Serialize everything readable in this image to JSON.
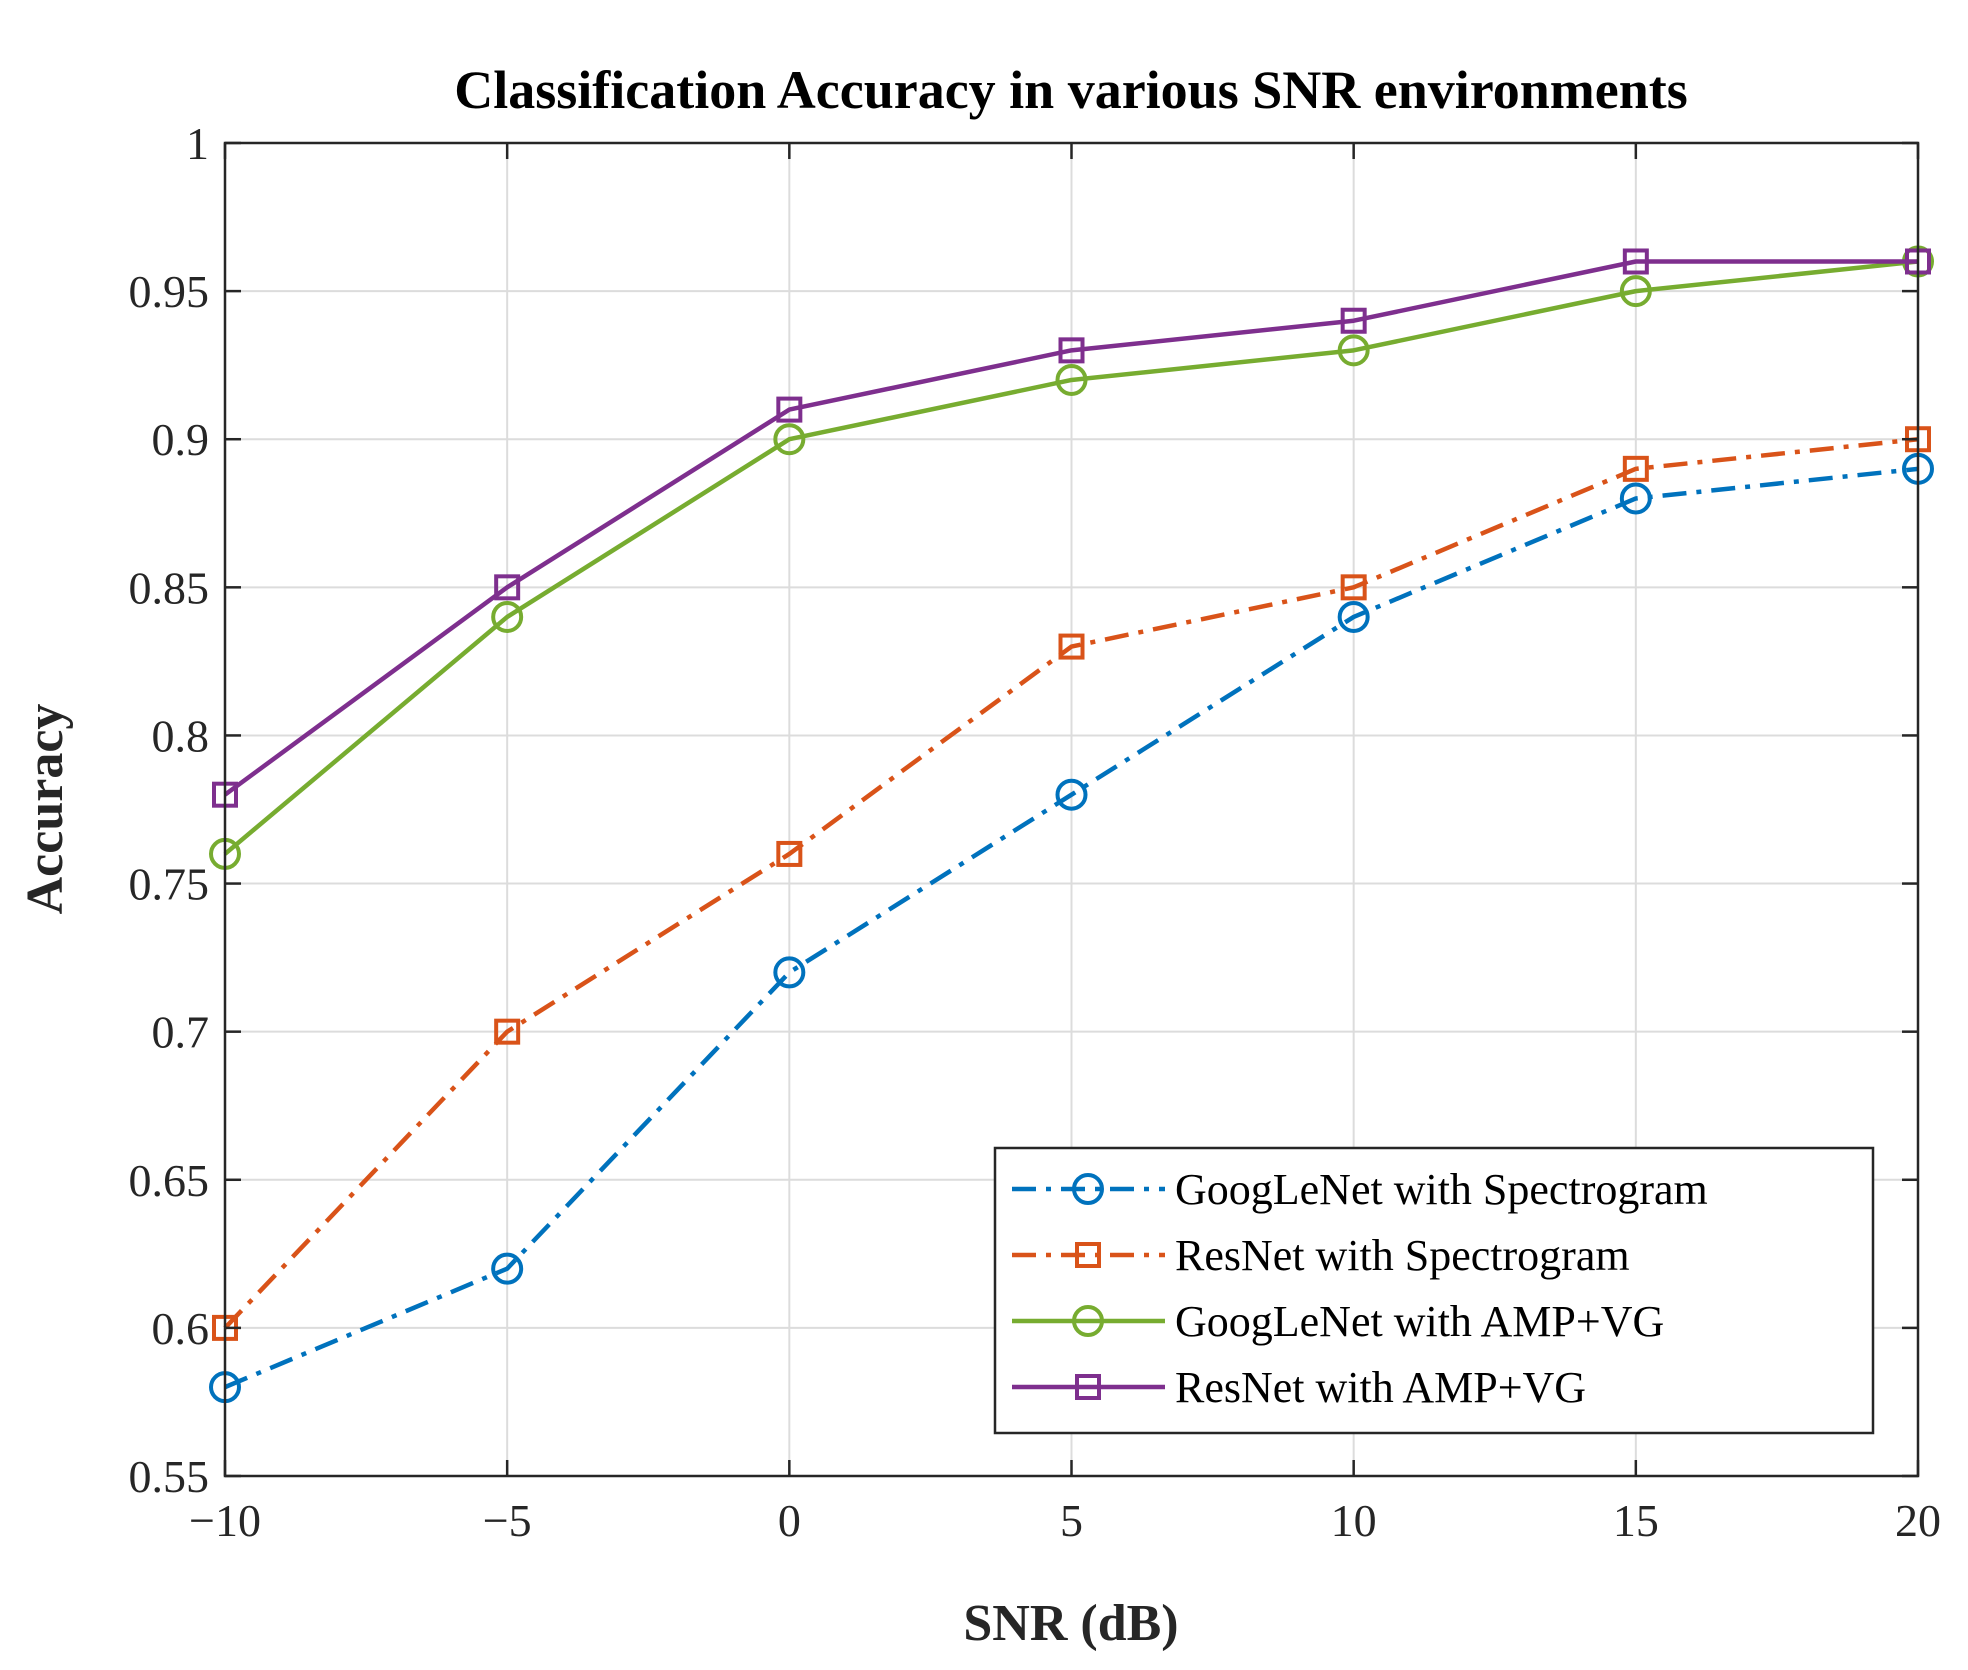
{
  "chart_data": {
    "type": "line",
    "title": "Classification Accuracy in various SNR environments",
    "xlabel": "SNR (dB)",
    "ylabel": "Accuracy",
    "x": [
      -10,
      -5,
      0,
      5,
      10,
      15,
      20
    ],
    "xlim": [
      -10,
      20
    ],
    "ylim": [
      0.55,
      1
    ],
    "xticks": [
      -10,
      -5,
      0,
      5,
      10,
      15,
      20
    ],
    "xtick_labels": [
      "−10",
      "−5",
      "0",
      "5",
      "10",
      "15",
      "20"
    ],
    "yticks": [
      0.55,
      0.6,
      0.65,
      0.7,
      0.75,
      0.8,
      0.85,
      0.9,
      0.95,
      1
    ],
    "ytick_labels": [
      "0.55",
      "0.6",
      "0.65",
      "0.7",
      "0.75",
      "0.8",
      "0.85",
      "0.9",
      "0.95",
      "1"
    ],
    "grid": true,
    "legend_position": "bottom-right",
    "series": [
      {
        "name": "GoogLeNet with Spectrogram",
        "color": "#0072BD",
        "marker": "circle",
        "line_style": "dash-dot",
        "values": [
          0.58,
          0.62,
          0.72,
          0.78,
          0.84,
          0.88,
          0.89
        ]
      },
      {
        "name": "ResNet with Spectrogram",
        "color": "#D95319",
        "marker": "square",
        "line_style": "dash-dot",
        "values": [
          0.6,
          0.7,
          0.76,
          0.83,
          0.85,
          0.89,
          0.9
        ]
      },
      {
        "name": "GoogLeNet with AMP+VG",
        "color": "#77AC30",
        "marker": "circle",
        "line_style": "solid",
        "values": [
          0.76,
          0.84,
          0.9,
          0.92,
          0.93,
          0.95,
          0.96
        ]
      },
      {
        "name": "ResNet with AMP+VG",
        "color": "#7E2F8E",
        "marker": "square",
        "line_style": "solid",
        "values": [
          0.78,
          0.85,
          0.91,
          0.93,
          0.94,
          0.96,
          0.96
        ]
      }
    ]
  }
}
